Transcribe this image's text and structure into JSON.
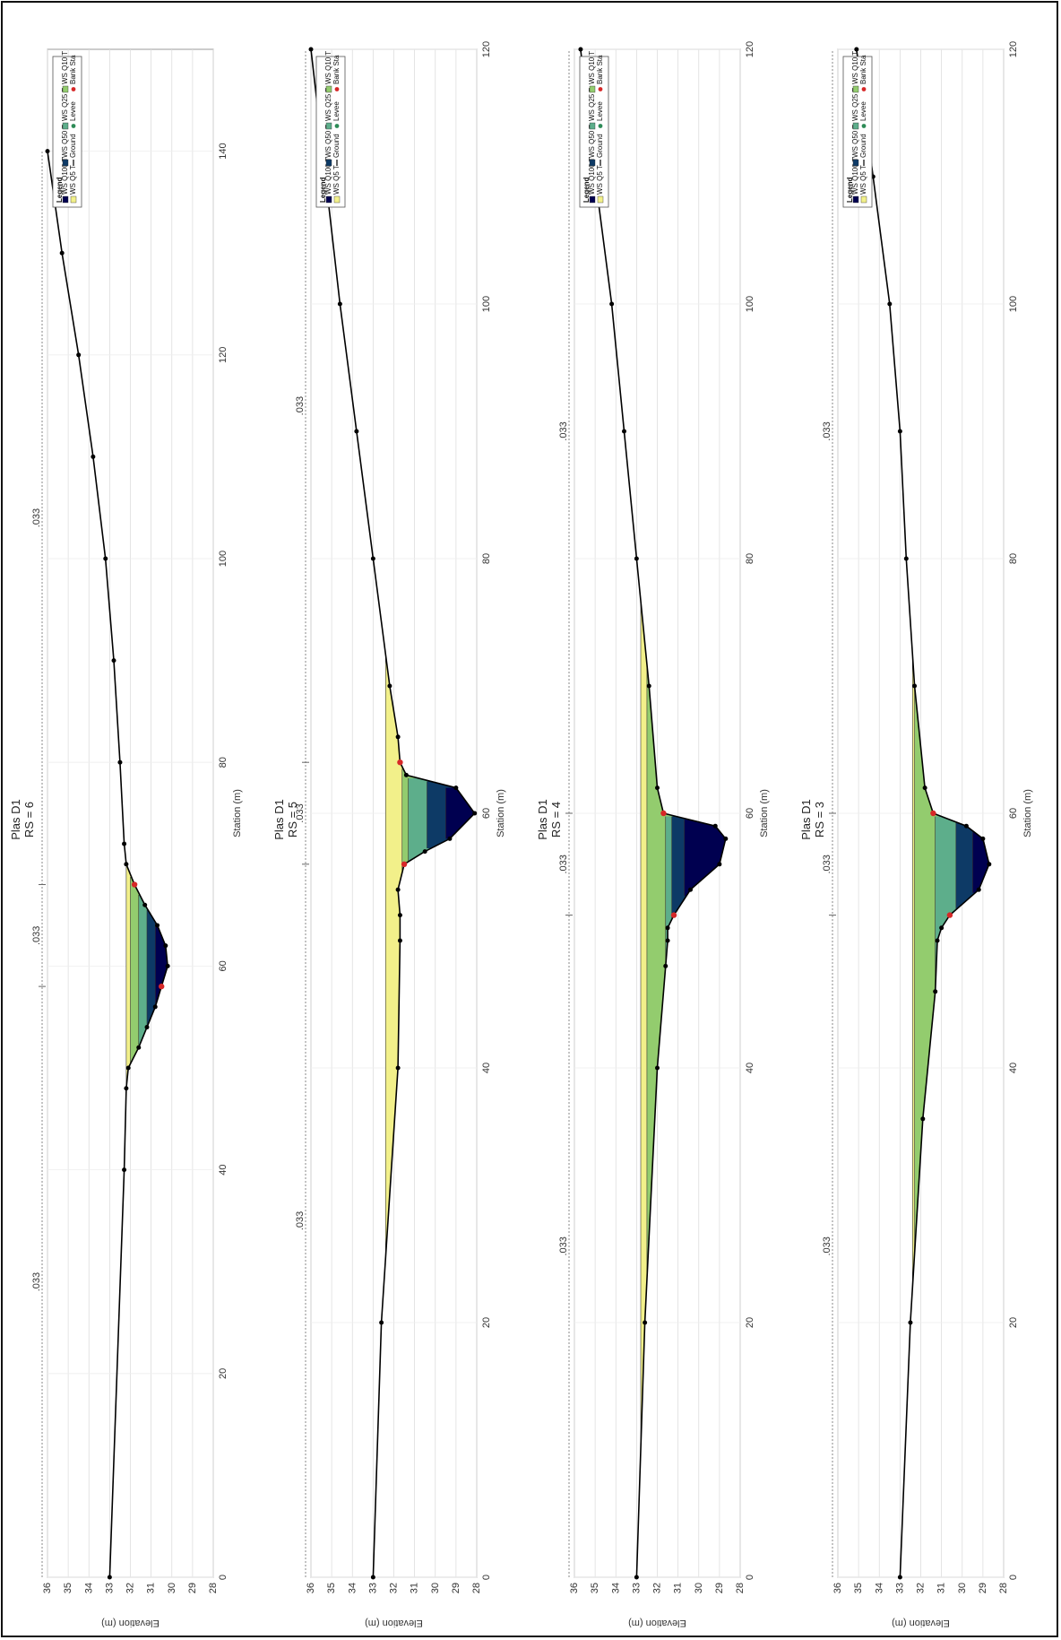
{
  "chart_data": [
    {
      "type": "area",
      "title": "Plas D1",
      "subtitle": "RS = 6",
      "xlabel": "Station (m)",
      "ylabel": "Elevation (m)",
      "xlim": [
        0,
        150
      ],
      "ylim": [
        28,
        36
      ],
      "x_ticks": [
        0,
        20,
        40,
        60,
        80,
        100,
        120,
        140
      ],
      "y_ticks": [
        28,
        29,
        30,
        31,
        32,
        33,
        34,
        35,
        36
      ],
      "grid": true,
      "legend_placement": "top-right",
      "n_values": [
        ".033",
        ".033",
        ".033"
      ],
      "n_breaks": [
        58,
        68
      ],
      "ground": {
        "x": [
          0,
          40,
          48,
          50,
          52,
          54,
          56,
          58,
          60,
          62,
          64,
          66,
          68,
          70,
          72,
          80,
          90,
          100,
          110,
          120,
          130,
          140
        ],
        "y": [
          33.0,
          32.3,
          32.2,
          32.1,
          31.6,
          31.2,
          30.8,
          30.5,
          30.2,
          30.3,
          30.7,
          31.3,
          31.8,
          32.2,
          32.3,
          32.5,
          32.8,
          33.2,
          33.8,
          34.5,
          35.3,
          36.0
        ]
      },
      "water_surfaces": [
        {
          "name": "Q5 T",
          "value": 32.2,
          "color": "#f2f08a"
        },
        {
          "name": "Q10 T",
          "value": 32.0,
          "color": "#93cc6e"
        },
        {
          "name": "Q25 T",
          "value": 31.6,
          "color": "#5dae8b"
        },
        {
          "name": "Q50 T",
          "value": 31.2,
          "color": "#0d3a66"
        },
        {
          "name": "Q100 T",
          "value": 30.8,
          "color": "#000050"
        }
      ],
      "legend": {
        "title": "Legend",
        "entries": [
          {
            "label": "WS Q100 T",
            "color": "#000050",
            "kind": "fill"
          },
          {
            "label": "WS Q50 T",
            "color": "#0d3a66",
            "kind": "fill"
          },
          {
            "label": "WS Q25 T",
            "color": "#5dae8b",
            "kind": "fill"
          },
          {
            "label": "WS Q10 T",
            "color": "#93cc6e",
            "kind": "fill"
          },
          {
            "label": "WS Q5 T",
            "color": "#f2f08a",
            "kind": "fill"
          },
          {
            "label": "Ground",
            "color": "#000000",
            "kind": "line"
          },
          {
            "label": "Levee",
            "color": "#2e8b57",
            "kind": "marker"
          },
          {
            "label": "Bank Sta",
            "color": "#d62828",
            "kind": "marker"
          }
        ]
      }
    },
    {
      "type": "area",
      "title": "Plas D1",
      "subtitle": "RS = 5",
      "xlabel": "Station (m)",
      "ylabel": "Elevation (m)",
      "xlim": [
        0,
        120
      ],
      "ylim": [
        28,
        36
      ],
      "x_ticks": [
        0,
        20,
        40,
        60,
        80,
        100,
        120
      ],
      "y_ticks": [
        28,
        29,
        30,
        31,
        32,
        33,
        34,
        35,
        36
      ],
      "grid": true,
      "legend_placement": "top-right",
      "n_values": [
        ".033",
        ".033",
        ".033"
      ],
      "n_breaks": [
        56,
        64
      ],
      "ground": {
        "x": [
          0,
          20,
          40,
          50,
          52,
          54,
          56,
          57,
          58,
          60,
          62,
          63,
          64,
          66,
          70,
          80,
          90,
          100,
          110,
          120
        ],
        "y": [
          33.0,
          32.6,
          31.8,
          31.7,
          31.7,
          31.8,
          31.5,
          30.5,
          29.3,
          28.1,
          29.0,
          31.4,
          31.7,
          31.8,
          32.2,
          33.0,
          33.8,
          34.6,
          35.3,
          36.0
        ]
      },
      "water_surfaces": [
        {
          "name": "Q5 T",
          "value": 32.4,
          "color": "#f2f08a"
        },
        {
          "name": "Q10 T",
          "value": 31.6,
          "color": "#93cc6e"
        },
        {
          "name": "Q25 T",
          "value": 31.3,
          "color": "#5dae8b"
        },
        {
          "name": "Q50 T",
          "value": 30.4,
          "color": "#0d3a66"
        },
        {
          "name": "Q100 T",
          "value": 29.5,
          "color": "#000050"
        }
      ],
      "legend": {
        "title": "Legend",
        "entries": [
          {
            "label": "WS Q100 T",
            "color": "#000050",
            "kind": "fill"
          },
          {
            "label": "WS Q50 T",
            "color": "#0d3a66",
            "kind": "fill"
          },
          {
            "label": "WS Q25 T",
            "color": "#5dae8b",
            "kind": "fill"
          },
          {
            "label": "WS Q10 T",
            "color": "#93cc6e",
            "kind": "fill"
          },
          {
            "label": "WS Q5 T",
            "color": "#f2f08a",
            "kind": "fill"
          },
          {
            "label": "Ground",
            "color": "#000000",
            "kind": "line"
          },
          {
            "label": "Levee",
            "color": "#2e8b57",
            "kind": "marker"
          },
          {
            "label": "Bank Sta",
            "color": "#d62828",
            "kind": "marker"
          }
        ]
      }
    },
    {
      "type": "area",
      "title": "Plas D1",
      "subtitle": "RS = 4",
      "xlabel": "Station (m)",
      "ylabel": "Elevation (m)",
      "xlim": [
        0,
        120
      ],
      "ylim": [
        28,
        36
      ],
      "x_ticks": [
        0,
        20,
        40,
        60,
        80,
        100,
        120
      ],
      "y_ticks": [
        28,
        29,
        30,
        31,
        32,
        33,
        34,
        35,
        36
      ],
      "grid": true,
      "legend_placement": "top-right",
      "n_values": [
        ".033",
        ".033",
        ".033"
      ],
      "n_breaks": [
        52,
        60
      ],
      "ground": {
        "x": [
          0,
          20,
          40,
          48,
          50,
          51,
          52,
          54,
          56,
          58,
          59,
          60,
          62,
          70,
          80,
          90,
          100,
          110,
          120
        ],
        "y": [
          33.0,
          32.6,
          32.0,
          31.6,
          31.5,
          31.5,
          31.2,
          30.4,
          29.0,
          28.7,
          29.2,
          31.7,
          32.0,
          32.4,
          33.0,
          33.6,
          34.2,
          35.0,
          35.7
        ]
      },
      "water_surfaces": [
        {
          "name": "Q5 T",
          "value": 32.8,
          "color": "#f2f08a"
        },
        {
          "name": "Q10 T",
          "value": 32.5,
          "color": "#93cc6e"
        },
        {
          "name": "Q25 T",
          "value": 31.6,
          "color": "#5dae8b"
        },
        {
          "name": "Q50 T",
          "value": 31.3,
          "color": "#0d3a66"
        },
        {
          "name": "Q100 T",
          "value": 30.7,
          "color": "#000050"
        }
      ],
      "legend": {
        "title": "Legend",
        "entries": [
          {
            "label": "WS Q100 T",
            "color": "#000050",
            "kind": "fill"
          },
          {
            "label": "WS Q50 T",
            "color": "#0d3a66",
            "kind": "fill"
          },
          {
            "label": "WS Q25 T",
            "color": "#5dae8b",
            "kind": "fill"
          },
          {
            "label": "WS Q10 T",
            "color": "#93cc6e",
            "kind": "fill"
          },
          {
            "label": "WS Q5 T",
            "color": "#f2f08a",
            "kind": "fill"
          },
          {
            "label": "Ground",
            "color": "#000000",
            "kind": "line"
          },
          {
            "label": "Levee",
            "color": "#2e8b57",
            "kind": "marker"
          },
          {
            "label": "Bank Sta",
            "color": "#d62828",
            "kind": "marker"
          }
        ]
      }
    },
    {
      "type": "area",
      "title": "Plas D1",
      "subtitle": "RS = 3",
      "xlabel": "Station (m)",
      "ylabel": "Elevation (m)",
      "xlim": [
        0,
        120
      ],
      "ylim": [
        28,
        36
      ],
      "x_ticks": [
        0,
        20,
        40,
        60,
        80,
        100,
        120
      ],
      "y_ticks": [
        28,
        29,
        30,
        31,
        32,
        33,
        34,
        35,
        36
      ],
      "grid": true,
      "legend_placement": "top-right",
      "n_values": [
        ".033",
        ".033",
        ".033"
      ],
      "n_breaks": [
        52,
        60
      ],
      "ground": {
        "x": [
          0,
          20,
          36,
          46,
          50,
          51,
          52,
          54,
          56,
          58,
          59,
          60,
          62,
          70,
          80,
          90,
          100,
          110,
          120
        ],
        "y": [
          33.0,
          32.5,
          31.9,
          31.3,
          31.2,
          31.0,
          30.6,
          29.2,
          28.7,
          29.0,
          29.8,
          31.4,
          31.8,
          32.3,
          32.7,
          33.0,
          33.5,
          34.3,
          35.1
        ]
      },
      "water_surfaces": [
        {
          "name": "Q5 T",
          "value": 32.4,
          "color": "#f2f08a"
        },
        {
          "name": "Q10 T",
          "value": 32.3,
          "color": "#93cc6e"
        },
        {
          "name": "Q25 T",
          "value": 31.3,
          "color": "#5dae8b"
        },
        {
          "name": "Q50 T",
          "value": 30.3,
          "color": "#0d3a66"
        },
        {
          "name": "Q100 T",
          "value": 29.5,
          "color": "#000050"
        }
      ],
      "legend": {
        "title": "Legend",
        "entries": [
          {
            "label": "WS Q100 T",
            "color": "#000050",
            "kind": "fill"
          },
          {
            "label": "WS Q50 T",
            "color": "#0d3a66",
            "kind": "fill"
          },
          {
            "label": "WS Q25 T",
            "color": "#5dae8b",
            "kind": "fill"
          },
          {
            "label": "WS Q10 T",
            "color": "#93cc6e",
            "kind": "fill"
          },
          {
            "label": "WS Q5 T",
            "color": "#f2f08a",
            "kind": "fill"
          },
          {
            "label": "Ground",
            "color": "#000000",
            "kind": "line"
          },
          {
            "label": "Levee",
            "color": "#2e8b57",
            "kind": "marker"
          },
          {
            "label": "Bank Sta",
            "color": "#d62828",
            "kind": "marker"
          }
        ]
      }
    }
  ]
}
